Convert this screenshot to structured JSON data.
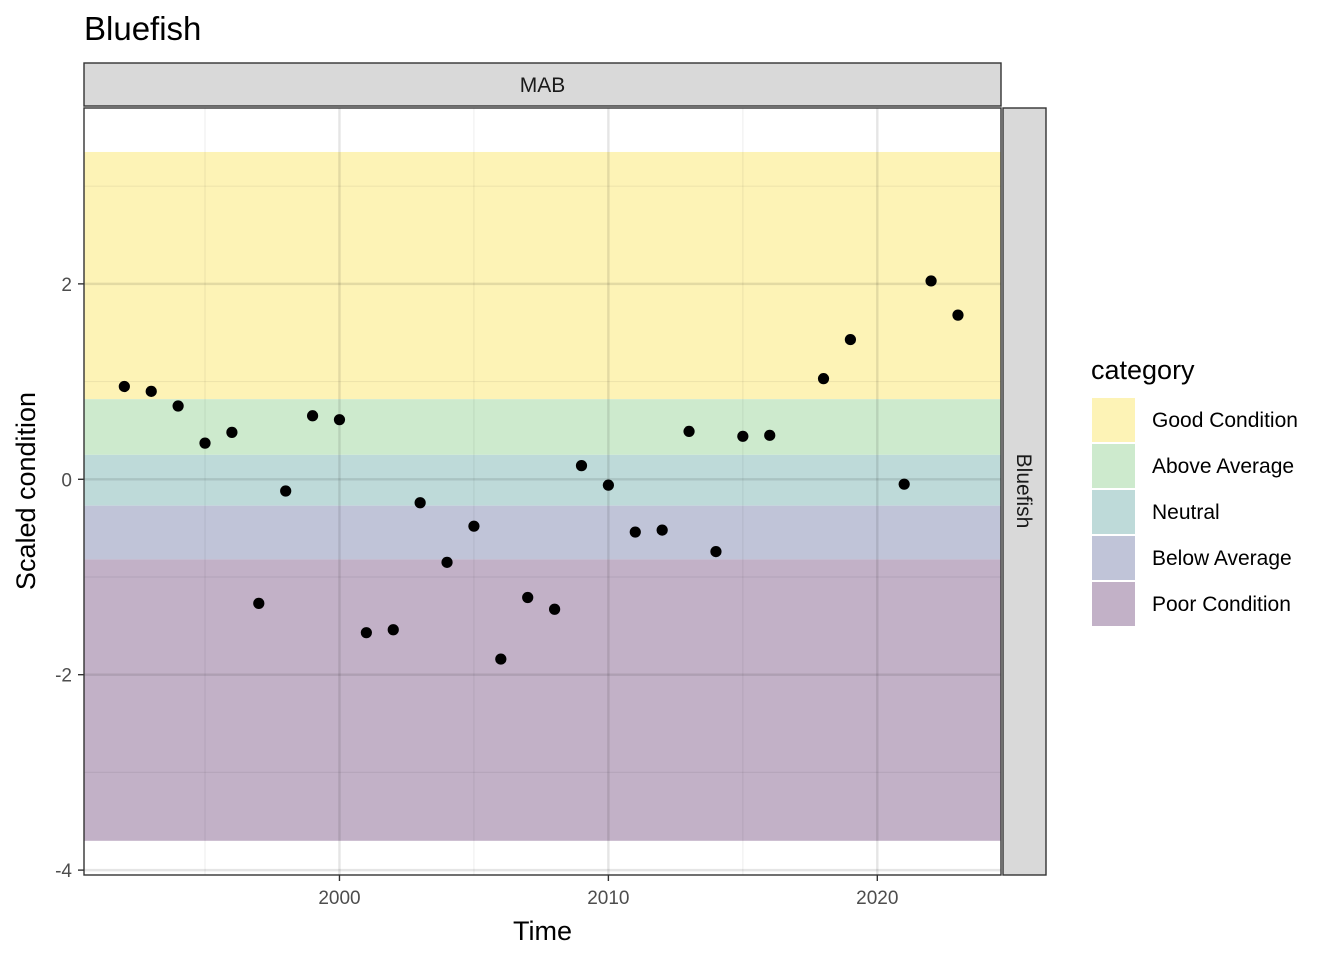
{
  "chart_data": {
    "type": "scatter",
    "title": "Bluefish",
    "xlabel": "Time",
    "ylabel": "Scaled condition",
    "facet_top": "MAB",
    "facet_right": "Bluefish",
    "xlim": [
      1990.5,
      2024.6
    ],
    "ylim": [
      -4.05,
      3.8
    ],
    "x_ticks": [
      2000,
      2010,
      2020
    ],
    "y_ticks": [
      -4,
      -2,
      0,
      2
    ],
    "x_tick_labels": [
      "2000",
      "2010",
      "2020"
    ],
    "y_tick_labels": [
      "-4",
      "-2",
      "0",
      "2"
    ],
    "grid": true,
    "legend": {
      "title": "category",
      "position": "right",
      "items": [
        {
          "label": "Good Condition",
          "color": "#FDF3B6"
        },
        {
          "label": "Above Average",
          "color": "#CDEACD"
        },
        {
          "label": "Neutral",
          "color": "#BEDAD9"
        },
        {
          "label": "Below Average",
          "color": "#C0C4D8"
        },
        {
          "label": "Poor Condition",
          "color": "#C2B1C7"
        }
      ]
    },
    "bands": [
      {
        "category": "Good Condition",
        "ymin": 0.82,
        "ymax": 3.35,
        "color": "#FDF3B6"
      },
      {
        "category": "Above Average",
        "ymin": 0.25,
        "ymax": 0.82,
        "color": "#CDEACD"
      },
      {
        "category": "Neutral",
        "ymin": -0.27,
        "ymax": 0.25,
        "color": "#BEDAD9"
      },
      {
        "category": "Below Average",
        "ymin": -0.82,
        "ymax": -0.27,
        "color": "#C0C4D8"
      },
      {
        "category": "Poor Condition",
        "ymin": -3.7,
        "ymax": -0.82,
        "color": "#C2B1C7"
      }
    ],
    "points": [
      {
        "x": 1992,
        "y": 0.95
      },
      {
        "x": 1993,
        "y": 0.9
      },
      {
        "x": 1994,
        "y": 0.75
      },
      {
        "x": 1995,
        "y": 0.37
      },
      {
        "x": 1996,
        "y": 0.48
      },
      {
        "x": 1997,
        "y": -1.27
      },
      {
        "x": 1998,
        "y": -0.12
      },
      {
        "x": 1999,
        "y": 0.65
      },
      {
        "x": 2000,
        "y": 0.61
      },
      {
        "x": 2001,
        "y": -1.57
      },
      {
        "x": 2002,
        "y": -1.54
      },
      {
        "x": 2003,
        "y": -0.24
      },
      {
        "x": 2004,
        "y": -0.85
      },
      {
        "x": 2005,
        "y": -0.48
      },
      {
        "x": 2006,
        "y": -1.84
      },
      {
        "x": 2007,
        "y": -1.21
      },
      {
        "x": 2008,
        "y": -1.33
      },
      {
        "x": 2009,
        "y": 0.14
      },
      {
        "x": 2010,
        "y": -0.06
      },
      {
        "x": 2011,
        "y": -0.54
      },
      {
        "x": 2012,
        "y": -0.52
      },
      {
        "x": 2013,
        "y": 0.49
      },
      {
        "x": 2014,
        "y": -0.74
      },
      {
        "x": 2015,
        "y": 0.44
      },
      {
        "x": 2016,
        "y": 0.45
      },
      {
        "x": 2018,
        "y": 1.03
      },
      {
        "x": 2019,
        "y": 1.43
      },
      {
        "x": 2021,
        "y": -0.05
      },
      {
        "x": 2022,
        "y": 2.03
      },
      {
        "x": 2023,
        "y": 1.68
      }
    ],
    "point_color": "#000000"
  }
}
